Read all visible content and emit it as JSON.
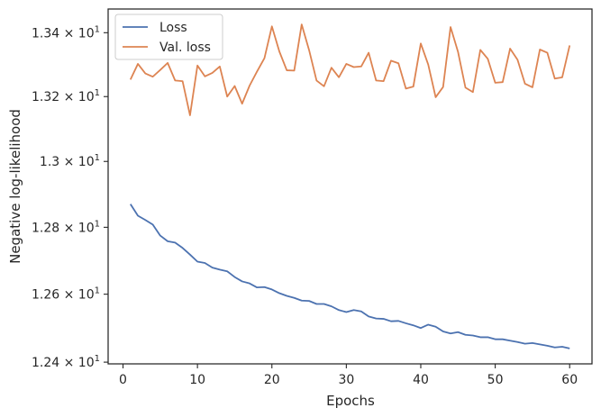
{
  "chart_data": {
    "type": "line",
    "xlabel": "Epochs",
    "ylabel": "Negative log-likelihood",
    "xlim": [
      -2.0,
      63.0
    ],
    "ylim": [
      12.395,
      13.475
    ],
    "yscale": "log",
    "xticks": [
      0,
      10,
      20,
      30,
      40,
      50,
      60
    ],
    "xtick_labels": [
      "0",
      "10",
      "20",
      "30",
      "40",
      "50",
      "60"
    ],
    "yticks": [
      12.4,
      12.6,
      12.8,
      13.0,
      13.2,
      13.4
    ],
    "ytick_base": [
      "1.24",
      "1.26",
      "1.28",
      "1.3",
      "1.32",
      "1.34"
    ],
    "ytick_mult": "× 10",
    "ytick_exp": "1",
    "grid": false,
    "legend_position": "top-left",
    "colors": {
      "loss": "#4c72b0",
      "val_loss": "#dd8452"
    },
    "x": [
      1,
      2,
      3,
      4,
      5,
      6,
      7,
      8,
      9,
      10,
      11,
      12,
      13,
      14,
      15,
      16,
      17,
      18,
      19,
      20,
      21,
      22,
      23,
      24,
      25,
      26,
      27,
      28,
      29,
      30,
      31,
      32,
      33,
      34,
      35,
      36,
      37,
      38,
      39,
      40,
      41,
      42,
      43,
      44,
      45,
      46,
      47,
      48,
      49,
      50,
      51,
      52,
      53,
      54,
      55,
      56,
      57,
      58,
      59,
      60
    ],
    "series": [
      {
        "name": "Loss",
        "values": [
          12.87,
          12.835,
          12.822,
          12.808,
          12.775,
          12.758,
          12.754,
          12.738,
          12.718,
          12.697,
          12.693,
          12.679,
          12.673,
          12.668,
          12.651,
          12.638,
          12.632,
          12.62,
          12.621,
          12.614,
          12.603,
          12.595,
          12.589,
          12.581,
          12.58,
          12.571,
          12.571,
          12.564,
          12.553,
          12.547,
          12.553,
          12.549,
          12.534,
          12.528,
          12.527,
          12.52,
          12.521,
          12.514,
          12.508,
          12.5,
          12.51,
          12.504,
          12.49,
          12.484,
          12.488,
          12.48,
          12.478,
          12.473,
          12.473,
          12.467,
          12.467,
          12.463,
          12.459,
          12.454,
          12.456,
          12.452,
          12.448,
          12.443,
          12.445,
          12.44
        ]
      },
      {
        "name": "Val. loss",
        "values": [
          13.253,
          13.302,
          13.272,
          13.262,
          13.283,
          13.305,
          13.25,
          13.248,
          13.142,
          13.297,
          13.263,
          13.274,
          13.294,
          13.2,
          13.233,
          13.178,
          13.234,
          13.278,
          13.32,
          13.42,
          13.341,
          13.282,
          13.281,
          13.426,
          13.345,
          13.25,
          13.232,
          13.29,
          13.26,
          13.302,
          13.292,
          13.294,
          13.337,
          13.25,
          13.248,
          13.312,
          13.304,
          13.225,
          13.231,
          13.366,
          13.3,
          13.198,
          13.23,
          13.418,
          13.34,
          13.228,
          13.214,
          13.346,
          13.318,
          13.243,
          13.245,
          13.35,
          13.315,
          13.24,
          13.229,
          13.347,
          13.337,
          13.256,
          13.26,
          13.36
        ]
      }
    ]
  }
}
